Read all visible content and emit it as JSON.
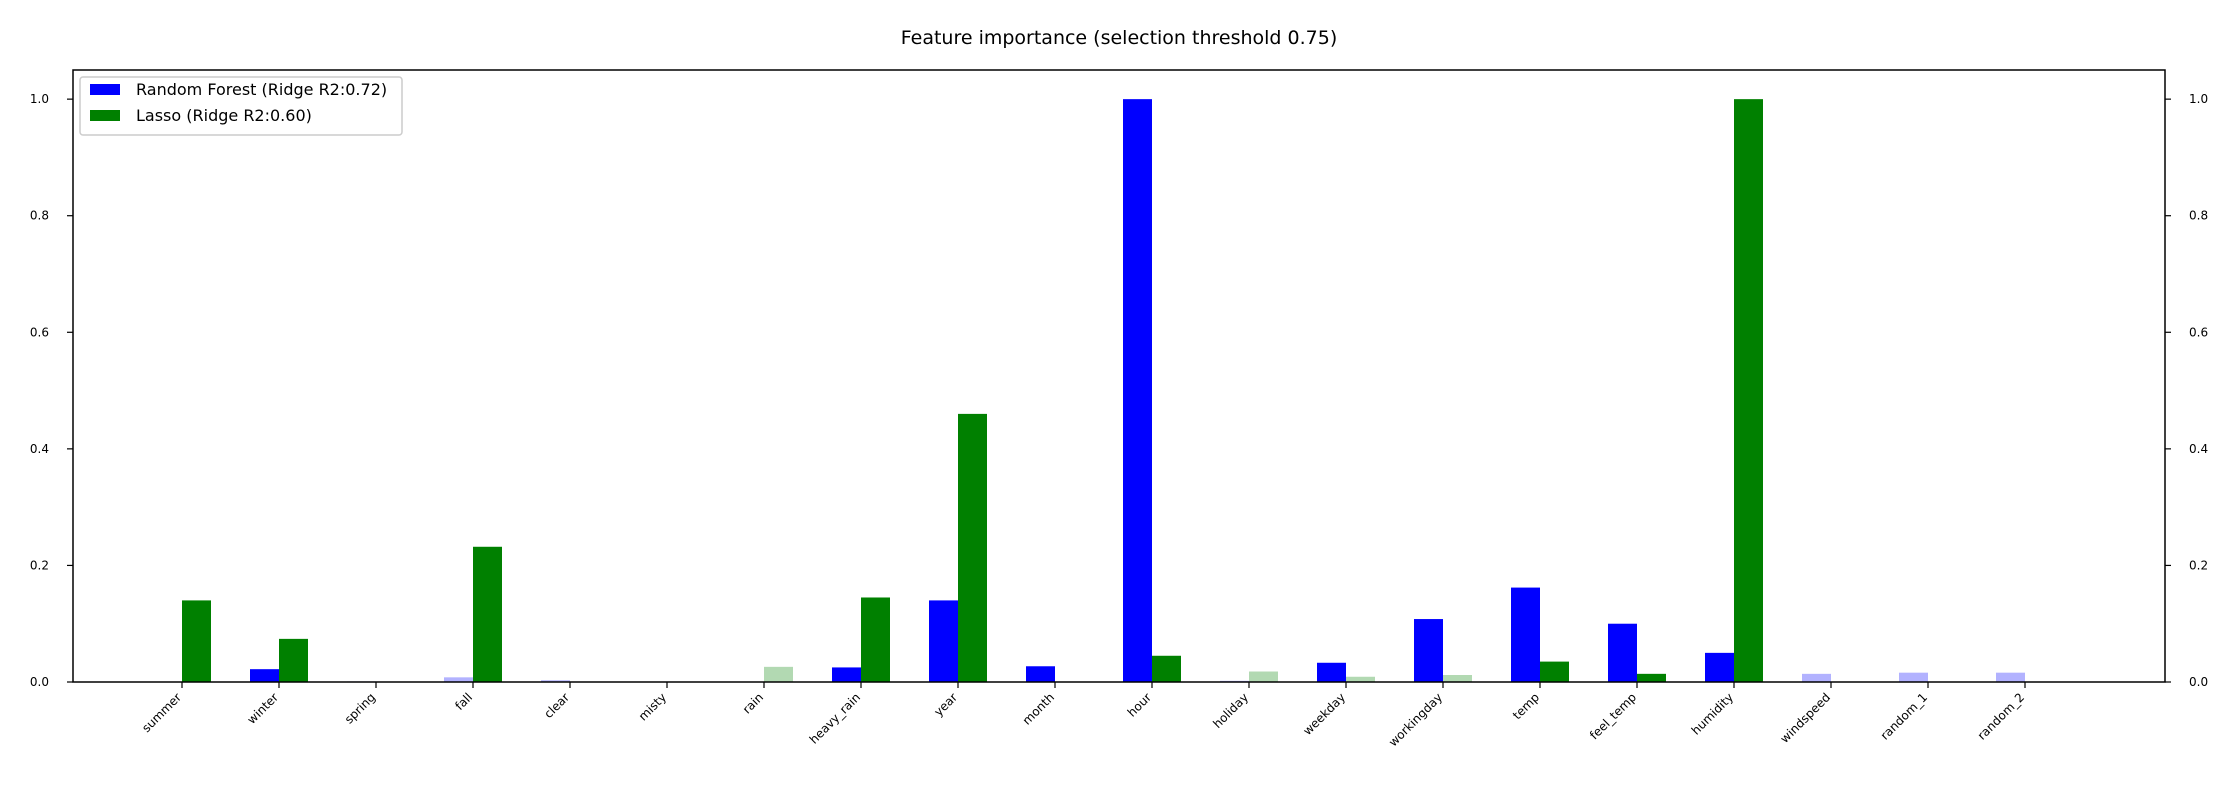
{
  "chart_data": {
    "type": "bar",
    "title": "Feature importance (selection threshold 0.75)",
    "xlabel": "",
    "ylabel": "",
    "ylim": [
      0,
      1.05
    ],
    "yticks": [
      "0.0",
      "0.2",
      "0.4",
      "0.6",
      "0.8",
      "1.0"
    ],
    "ytick_values": [
      0,
      0.2,
      0.4,
      0.6,
      0.8,
      1.0
    ],
    "legend_position": "top-left",
    "grid": false,
    "selection_threshold": 0.75,
    "categories": [
      "summer",
      "winter",
      "spring",
      "fall",
      "clear",
      "misty",
      "rain",
      "heavy_rain",
      "year",
      "month",
      "hour",
      "holiday",
      "weekday",
      "workingday",
      "temp",
      "feel_temp",
      "humidity",
      "windspeed",
      "random_1",
      "random_2"
    ],
    "series": [
      {
        "name": "Random Forest (Ridge R2:0.72)",
        "color": "#0000ff",
        "values": [
          0.0,
          0.022,
          0.001,
          0.008,
          0.003,
          0.0,
          0.0,
          0.025,
          0.14,
          0.027,
          1.0,
          0.002,
          0.033,
          0.108,
          0.162,
          0.1,
          0.05,
          0.014,
          0.016,
          0.016
        ],
        "selected": [
          false,
          true,
          false,
          false,
          false,
          false,
          false,
          true,
          true,
          true,
          true,
          false,
          true,
          true,
          true,
          true,
          true,
          false,
          false,
          false
        ]
      },
      {
        "name": "Lasso (Ridge R2:0.60)",
        "color": "#008000",
        "values": [
          0.14,
          0.074,
          0.0,
          0.232,
          0.0,
          0.0,
          0.026,
          0.145,
          0.46,
          0.0,
          0.045,
          0.018,
          0.009,
          0.012,
          0.035,
          0.014,
          1.0,
          0.0,
          0.0,
          0.0
        ],
        "selected": [
          true,
          true,
          false,
          true,
          false,
          false,
          false,
          true,
          true,
          false,
          true,
          false,
          false,
          false,
          true,
          true,
          true,
          false,
          false,
          false
        ]
      }
    ]
  }
}
